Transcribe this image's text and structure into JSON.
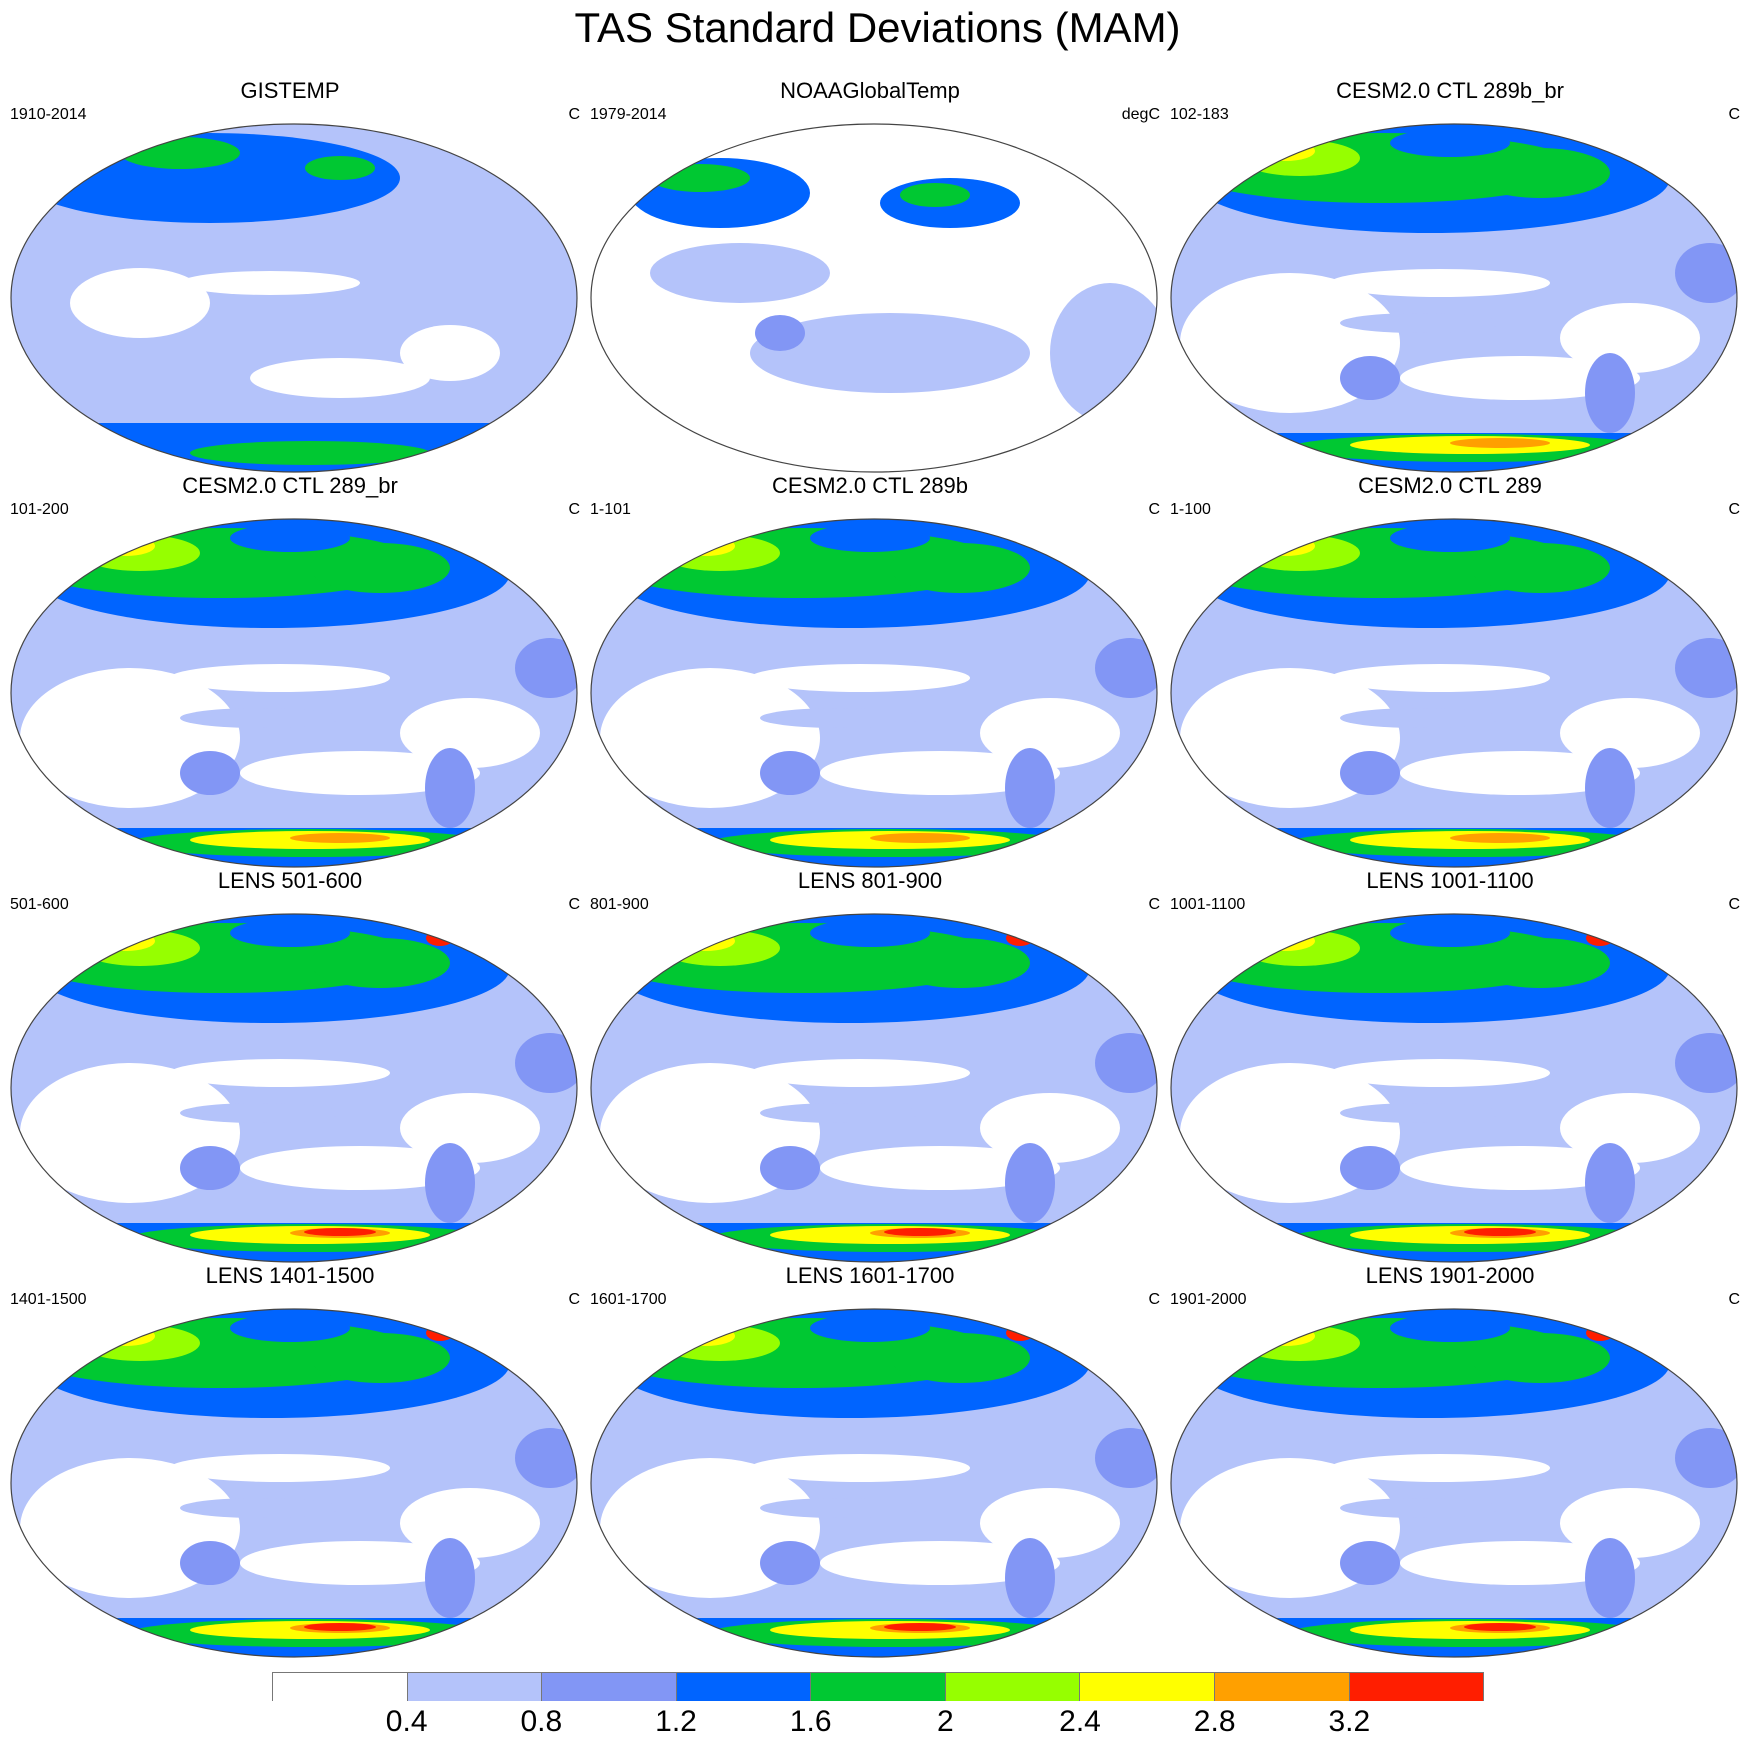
{
  "title": "TAS Standard Deviations (MAM)",
  "panels": [
    {
      "title": "GISTEMP",
      "period": "1910-2014",
      "units": "C",
      "variant": "obs_gistemp"
    },
    {
      "title": "NOAAGlobalTemp",
      "period": "1979-2014",
      "units": "degC",
      "variant": "obs_noaa"
    },
    {
      "title": "CESM2.0 CTL 289b_br",
      "period": "102-183",
      "units": "C",
      "variant": "model"
    },
    {
      "title": "CESM2.0 CTL 289_br",
      "period": "101-200",
      "units": "C",
      "variant": "model"
    },
    {
      "title": "CESM2.0 CTL 289b",
      "period": "1-101",
      "units": "C",
      "variant": "model"
    },
    {
      "title": "CESM2.0 CTL 289",
      "period": "1-100",
      "units": "C",
      "variant": "model"
    },
    {
      "title": "LENS 501-600",
      "period": "501-600",
      "units": "C",
      "variant": "lens"
    },
    {
      "title": "LENS 801-900",
      "period": "801-900",
      "units": "C",
      "variant": "lens"
    },
    {
      "title": "LENS 1001-1100",
      "period": "1001-1100",
      "units": "C",
      "variant": "lens"
    },
    {
      "title": "LENS 1401-1500",
      "period": "1401-1500",
      "units": "C",
      "variant": "lens"
    },
    {
      "title": "LENS 1601-1700",
      "period": "1601-1700",
      "units": "C",
      "variant": "lens"
    },
    {
      "title": "LENS 1901-2000",
      "period": "1901-2000",
      "units": "C",
      "variant": "lens"
    }
  ],
  "colorbar": {
    "colors": [
      "#ffffff",
      "#b4c3fa",
      "#8296f5",
      "#0064ff",
      "#00c832",
      "#96ff00",
      "#ffff00",
      "#ffa000",
      "#ff1e00"
    ],
    "ticks": [
      "0.4",
      "0.8",
      "1.2",
      "1.6",
      "2",
      "2.4",
      "2.8",
      "3.2"
    ]
  }
}
